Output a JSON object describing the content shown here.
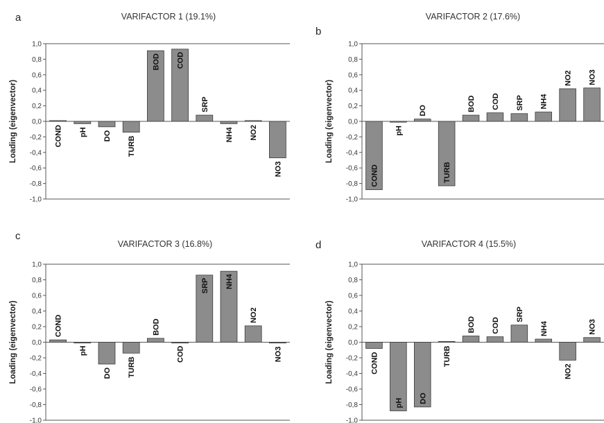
{
  "chart_data": [
    {
      "letter": "a",
      "type": "bar",
      "title": "VARIFACTOR 1 (19.1%)",
      "ylabel": "Loading (eigenvector)",
      "ylim": [
        -1.0,
        1.0
      ],
      "yticks": [
        "1,0",
        "0,8",
        "0,6",
        "0,4",
        "0,2",
        "0,0",
        "-0,2",
        "-0,4",
        "-0,6",
        "-0,8",
        "-1,0"
      ],
      "categories": [
        "COND",
        "pH",
        "DO",
        "TURB",
        "BOD",
        "COD",
        "SRP",
        "NH4",
        "NO2",
        "NO3"
      ],
      "values": [
        0.01,
        -0.03,
        -0.07,
        -0.14,
        0.91,
        0.93,
        0.08,
        -0.03,
        0.01,
        -0.47
      ]
    },
    {
      "letter": "b",
      "type": "bar",
      "title": "VARIFACTOR 2 (17.6%)",
      "ylabel": "Loading (eigenvector)",
      "ylim": [
        -1.0,
        1.0
      ],
      "yticks": [
        "1,0",
        "0,8",
        "0,6",
        "0,4",
        "0,2",
        "0,0",
        "-0,2",
        "-0,4",
        "-0,6",
        "-0,8",
        "-1,0"
      ],
      "categories": [
        "COND",
        "pH",
        "DO",
        "TURB",
        "BOD",
        "COD",
        "SRP",
        "NH4",
        "NO2",
        "NO3"
      ],
      "values": [
        -0.88,
        -0.01,
        0.03,
        -0.83,
        0.08,
        0.11,
        0.1,
        0.12,
        0.42,
        0.43
      ]
    },
    {
      "letter": "c",
      "type": "bar",
      "title": "VARIFACTOR 3 (16.8%)",
      "ylabel": "Loading (eigenvector)",
      "ylim": [
        -1.0,
        1.0
      ],
      "yticks": [
        "1,0",
        "0,8",
        "0,6",
        "0,4",
        "0,2",
        "0,0",
        "-0,2",
        "-0,4",
        "-0,6",
        "-0,8",
        "-1,0"
      ],
      "categories": [
        "COND",
        "pH",
        "DO",
        "TURB",
        "BOD",
        "COD",
        "SRP",
        "NH4",
        "NO2",
        "NO3"
      ],
      "values": [
        0.03,
        0.0,
        -0.28,
        -0.14,
        0.05,
        0.0,
        0.86,
        0.91,
        0.21,
        -0.01
      ]
    },
    {
      "letter": "d",
      "type": "bar",
      "title": "VARIFACTOR 4 (15.5%)",
      "ylabel": "Loading (eigenvector)",
      "ylim": [
        -1.0,
        1.0
      ],
      "yticks": [
        "1,0",
        "0,8",
        "0,6",
        "0,4",
        "0,2",
        "0,0",
        "-0,2",
        "-0,4",
        "-0,6",
        "-0,8",
        "-1,0"
      ],
      "categories": [
        "COND",
        "pH",
        "DO",
        "TURB",
        "BOD",
        "COD",
        "SRP",
        "NH4",
        "NO2",
        "NO3"
      ],
      "values": [
        -0.08,
        -0.88,
        -0.83,
        0.01,
        0.08,
        0.07,
        0.22,
        0.04,
        -0.23,
        0.06
      ]
    }
  ]
}
